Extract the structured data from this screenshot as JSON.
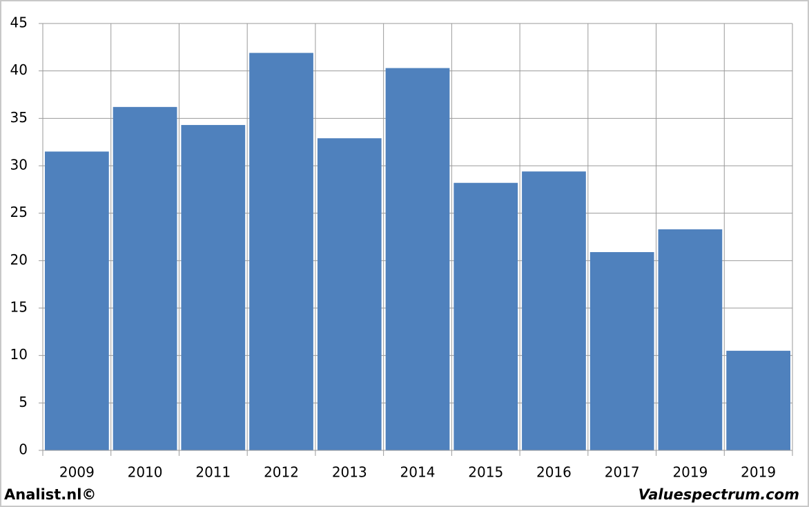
{
  "chart_data": {
    "type": "bar",
    "categories": [
      "2009",
      "2010",
      "2011",
      "2012",
      "2013",
      "2014",
      "2015",
      "2016",
      "2017",
      "2019",
      "2019"
    ],
    "values": [
      31.5,
      36.2,
      34.3,
      41.9,
      32.9,
      40.3,
      28.2,
      29.4,
      20.9,
      23.3,
      10.5
    ],
    "color": "#4f81bd",
    "ylim": [
      0,
      45
    ],
    "yticks": [
      0,
      5,
      10,
      15,
      20,
      25,
      30,
      35,
      40,
      45
    ],
    "grid": true
  },
  "footer": {
    "left": "Analist.nl©",
    "right": "Valuespectrum.com"
  }
}
